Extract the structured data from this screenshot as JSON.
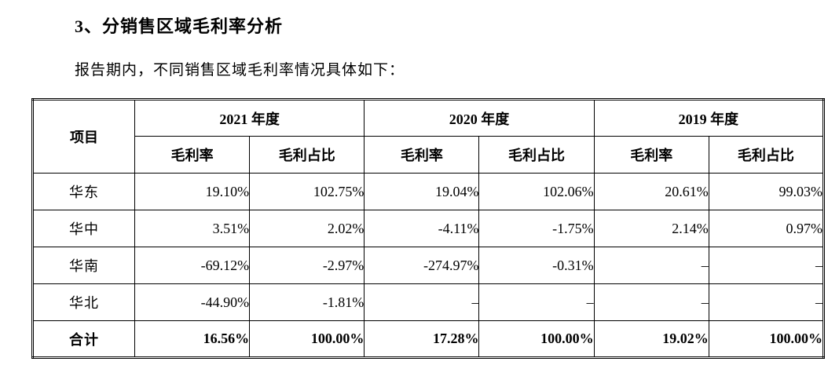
{
  "heading": "3、分销售区域毛利率分析",
  "intro": "报告期内，不同销售区域毛利率情况具体如下：",
  "table": {
    "corner_header": "项目",
    "year_headers": [
      "2021 年度",
      "2020 年度",
      "2019 年度"
    ],
    "sub_headers": [
      "毛利率",
      "毛利占比"
    ],
    "rows": [
      {
        "label": "华东",
        "values": [
          "19.10%",
          "102.75%",
          "19.04%",
          "102.06%",
          "20.61%",
          "99.03%"
        ]
      },
      {
        "label": "华中",
        "values": [
          "3.51%",
          "2.02%",
          "-4.11%",
          "-1.75%",
          "2.14%",
          "0.97%"
        ]
      },
      {
        "label": "华南",
        "values": [
          "-69.12%",
          "-2.97%",
          "-274.97%",
          "-0.31%",
          "–",
          "–"
        ]
      },
      {
        "label": "华北",
        "values": [
          "-44.90%",
          "-1.81%",
          "–",
          "–",
          "–",
          "–"
        ]
      },
      {
        "label": "合计",
        "values": [
          "16.56%",
          "100.00%",
          "17.28%",
          "100.00%",
          "19.02%",
          "100.00%"
        ]
      }
    ]
  },
  "colors": {
    "text": "#000000",
    "background": "#ffffff",
    "border": "#000000"
  }
}
